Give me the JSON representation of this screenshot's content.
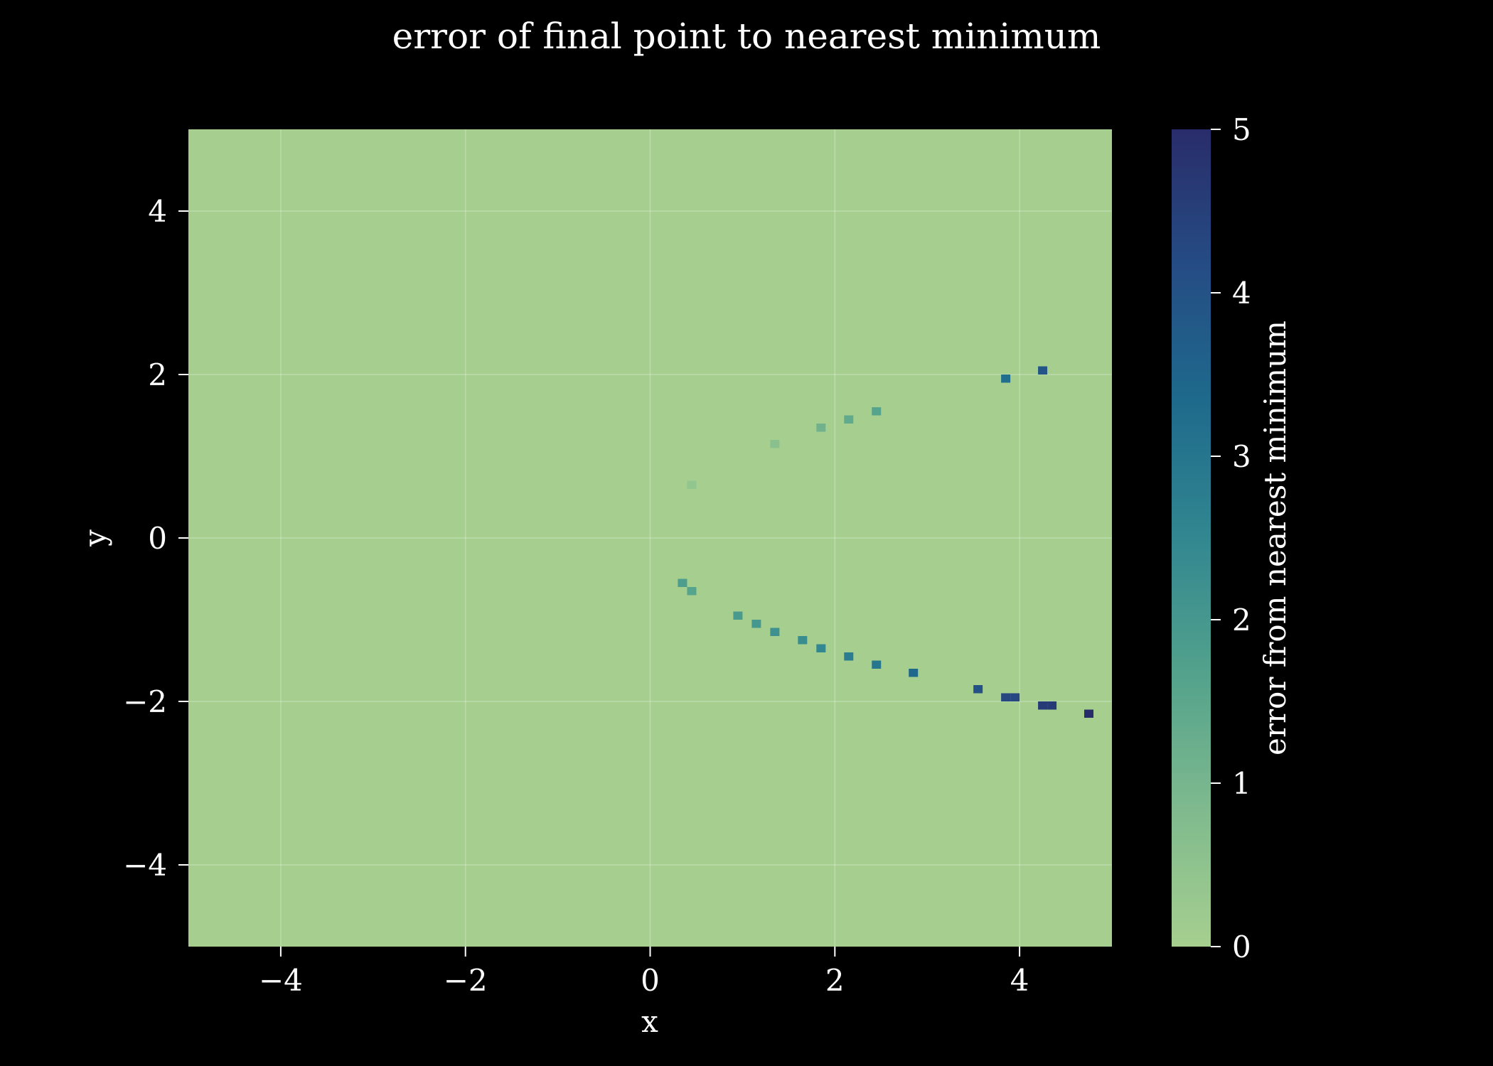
{
  "chart_data": {
    "type": "heatmap",
    "title": "error of final point to nearest minimum",
    "xlabel": "x",
    "ylabel": "y",
    "xlim": [
      -5,
      5
    ],
    "ylim": [
      -5,
      5
    ],
    "x_ticks": [
      -4,
      -2,
      0,
      2,
      4
    ],
    "y_ticks": [
      -4,
      -2,
      0,
      2,
      4
    ],
    "x_tick_labels": [
      "−4",
      "−2",
      "0",
      "2",
      "4"
    ],
    "y_tick_labels": [
      "−4",
      "−2",
      "0",
      "2",
      "4"
    ],
    "grid": true,
    "cell_size": 0.1,
    "background_value": 0,
    "colorbar": {
      "label": "error from nearest minimum",
      "range": [
        0,
        5
      ],
      "ticks": [
        0,
        1,
        2,
        3,
        4,
        5
      ],
      "tick_labels": [
        "0",
        "1",
        "2",
        "3",
        "4",
        "5"
      ],
      "colors": [
        "#a6cf8f",
        "#7fba8e",
        "#53a28c",
        "#328790",
        "#1e6a8c",
        "#254c84",
        "#292c6a"
      ]
    },
    "points": [
      {
        "x": 0.45,
        "y": 0.65,
        "value": 0.4
      },
      {
        "x": 1.35,
        "y": 1.15,
        "value": 0.6
      },
      {
        "x": 1.85,
        "y": 1.35,
        "value": 1.1
      },
      {
        "x": 2.15,
        "y": 1.45,
        "value": 1.4
      },
      {
        "x": 2.45,
        "y": 1.55,
        "value": 1.6
      },
      {
        "x": 3.85,
        "y": 1.95,
        "value": 3.2
      },
      {
        "x": 4.25,
        "y": 2.05,
        "value": 3.9
      },
      {
        "x": 0.35,
        "y": -0.55,
        "value": 1.8
      },
      {
        "x": 0.45,
        "y": -0.65,
        "value": 1.6
      },
      {
        "x": 0.95,
        "y": -0.95,
        "value": 1.9
      },
      {
        "x": 1.15,
        "y": -1.05,
        "value": 2.0
      },
      {
        "x": 1.35,
        "y": -1.15,
        "value": 2.2
      },
      {
        "x": 1.65,
        "y": -1.25,
        "value": 2.3
      },
      {
        "x": 1.85,
        "y": -1.35,
        "value": 2.5
      },
      {
        "x": 2.15,
        "y": -1.45,
        "value": 2.8
      },
      {
        "x": 2.45,
        "y": -1.55,
        "value": 3.0
      },
      {
        "x": 2.85,
        "y": -1.65,
        "value": 3.4
      },
      {
        "x": 3.55,
        "y": -1.85,
        "value": 4.0
      },
      {
        "x": 3.85,
        "y": -1.95,
        "value": 4.3
      },
      {
        "x": 3.95,
        "y": -1.95,
        "value": 4.3
      },
      {
        "x": 4.25,
        "y": -2.05,
        "value": 4.6
      },
      {
        "x": 4.35,
        "y": -2.05,
        "value": 4.6
      },
      {
        "x": 4.75,
        "y": -2.15,
        "value": 5.0
      }
    ]
  }
}
